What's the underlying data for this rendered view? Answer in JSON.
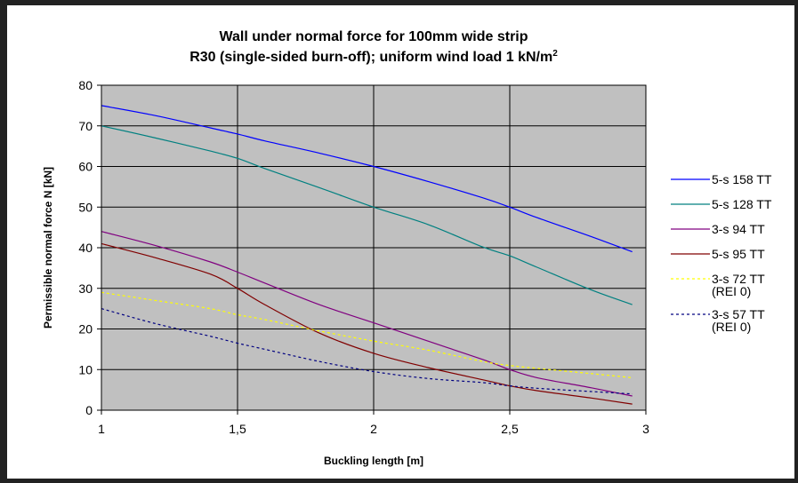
{
  "chart_data": {
    "type": "line",
    "title_line1": "Wall under normal force for 100mm wide strip",
    "title_line2_main": "R30 (single-sided burn-off); uniform wind load 1 kN/m",
    "title_line2_sup": "2",
    "xlabel": "Buckling length [m]",
    "ylabel": "Permissible normal force N [kN]",
    "xlim": [
      1,
      3
    ],
    "ylim": [
      0,
      80
    ],
    "x_ticks": [
      1,
      1.5,
      2,
      2.5,
      3
    ],
    "x_tick_labels": [
      "1",
      "1,5",
      "2",
      "2,5",
      "3"
    ],
    "y_ticks": [
      0,
      10,
      20,
      30,
      40,
      50,
      60,
      70,
      80
    ],
    "y_tick_labels": [
      "0",
      "10",
      "20",
      "30",
      "40",
      "50",
      "60",
      "70",
      "80"
    ],
    "grid": true,
    "plot_background": "#c0c0c0",
    "legend_position": "right",
    "series": [
      {
        "name": "5-s 158 TT",
        "label_lines": [
          "5-s 158 TT"
        ],
        "color": "#0000ff",
        "dashed": false,
        "points": [
          [
            1,
            75
          ],
          [
            1.2,
            72.5
          ],
          [
            1.4,
            69.5
          ],
          [
            1.5,
            68
          ],
          [
            1.6,
            66.3
          ],
          [
            1.8,
            63.3
          ],
          [
            2,
            60
          ],
          [
            2.2,
            56.3
          ],
          [
            2.4,
            52.3
          ],
          [
            2.5,
            50
          ],
          [
            2.6,
            47.4
          ],
          [
            2.8,
            42.7
          ],
          [
            2.95,
            39
          ]
        ]
      },
      {
        "name": "5-s 128 TT",
        "label_lines": [
          "5-s 128 TT"
        ],
        "color": "#008080",
        "dashed": false,
        "points": [
          [
            1,
            70
          ],
          [
            1.2,
            67
          ],
          [
            1.4,
            63.8
          ],
          [
            1.5,
            62
          ],
          [
            1.6,
            59.5
          ],
          [
            1.8,
            54.8
          ],
          [
            2,
            50
          ],
          [
            2.2,
            45.7
          ],
          [
            2.4,
            40.2
          ],
          [
            2.5,
            38
          ],
          [
            2.6,
            35.2
          ],
          [
            2.8,
            29.6
          ],
          [
            2.95,
            26
          ]
        ]
      },
      {
        "name": "3-s 94 TT",
        "label_lines": [
          "3-s 94 TT"
        ],
        "color": "#800080",
        "dashed": false,
        "points": [
          [
            1,
            44
          ],
          [
            1.2,
            40.5
          ],
          [
            1.4,
            36.5
          ],
          [
            1.5,
            34
          ],
          [
            1.6,
            31.3
          ],
          [
            1.8,
            26
          ],
          [
            2,
            21.5
          ],
          [
            2.2,
            17
          ],
          [
            2.4,
            12.5
          ],
          [
            2.5,
            10
          ],
          [
            2.6,
            8
          ],
          [
            2.8,
            5.5
          ],
          [
            2.95,
            3.5
          ]
        ]
      },
      {
        "name": "5-s 95 TT",
        "label_lines": [
          "5-s 95 TT"
        ],
        "color": "#800000",
        "dashed": false,
        "points": [
          [
            1,
            41
          ],
          [
            1.2,
            37.5
          ],
          [
            1.4,
            33.5
          ],
          [
            1.5,
            30
          ],
          [
            1.6,
            26
          ],
          [
            1.8,
            19
          ],
          [
            2,
            14
          ],
          [
            2.2,
            10.5
          ],
          [
            2.4,
            7.5
          ],
          [
            2.5,
            6
          ],
          [
            2.6,
            4.8
          ],
          [
            2.8,
            3
          ],
          [
            2.95,
            1.5
          ]
        ]
      },
      {
        "name": "3-s 72 TT (REI 0)",
        "label_lines": [
          "3-s 72 TT",
          "(REI 0)"
        ],
        "color": "#ffff00",
        "dashed": true,
        "points": [
          [
            1,
            29
          ],
          [
            1.2,
            27
          ],
          [
            1.4,
            25
          ],
          [
            1.5,
            23.5
          ],
          [
            1.6,
            22.3
          ],
          [
            1.8,
            19.5
          ],
          [
            2,
            17
          ],
          [
            2.2,
            14.8
          ],
          [
            2.4,
            12
          ],
          [
            2.5,
            11
          ],
          [
            2.6,
            10.3
          ],
          [
            2.8,
            9
          ],
          [
            2.95,
            8
          ]
        ]
      },
      {
        "name": "3-s 57 TT (REI 0)",
        "label_lines": [
          "3-s 57 TT",
          "(REI 0)"
        ],
        "color": "#000080",
        "dashed": true,
        "points": [
          [
            1,
            25
          ],
          [
            1.2,
            21.3
          ],
          [
            1.4,
            18.2
          ],
          [
            1.5,
            16.5
          ],
          [
            1.6,
            15
          ],
          [
            1.8,
            12
          ],
          [
            2,
            9.5
          ],
          [
            2.2,
            7.8
          ],
          [
            2.4,
            6.8
          ],
          [
            2.5,
            6
          ],
          [
            2.6,
            5.4
          ],
          [
            2.8,
            4.6
          ],
          [
            2.95,
            4
          ]
        ]
      }
    ]
  }
}
